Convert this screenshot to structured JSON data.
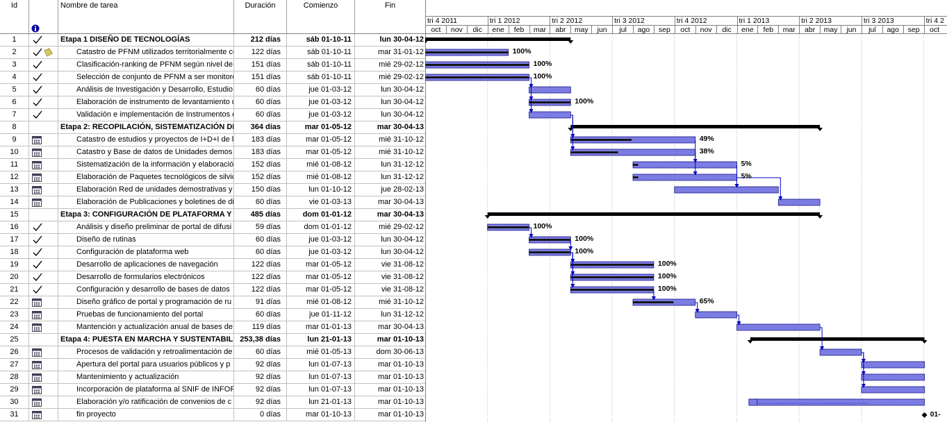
{
  "columns": {
    "id": "Id",
    "info_icon": "info-icon",
    "name": "Nombre de tarea",
    "duration": "Duración",
    "start": "Comienzo",
    "end": "Fin"
  },
  "timescale": {
    "quarters": [
      "tri 4 2011",
      "tri 1 2012",
      "tri 2 2012",
      "tri 3 2012",
      "tri 4 2012",
      "tri 1 2013",
      "tri 2 2013",
      "tri 3 2013",
      "tri 4 2"
    ],
    "months": [
      "oct",
      "nov",
      "dic",
      "ene",
      "feb",
      "mar",
      "abr",
      "may",
      "jun",
      "jul",
      "ago",
      "sep",
      "oct",
      "nov",
      "dic",
      "ene",
      "feb",
      "mar",
      "abr",
      "may",
      "jun",
      "jul",
      "ago",
      "sep",
      "oct"
    ]
  },
  "tasks": [
    {
      "id": "1",
      "ind": "check",
      "name": "Etapa 1 DISEÑO DE TECNOLOGÍAS",
      "dur": "212 días",
      "start": "sáb 01-10-11",
      "end": "lun 30-04-12",
      "summary": true
    },
    {
      "id": "2",
      "ind": "check-note",
      "name": "Catastro de PFNM utilizados territorialmente co",
      "dur": "122 días",
      "start": "sáb 01-10-11",
      "end": "mar 31-01-12",
      "pct": "100%"
    },
    {
      "id": "3",
      "ind": "check",
      "name": "Clasificación-ranking de PFNM según nivel de",
      "dur": "151 días",
      "start": "sáb 01-10-11",
      "end": "mié 29-02-12",
      "pct": "100%"
    },
    {
      "id": "4",
      "ind": "check",
      "name": "Selección de conjunto de PFNM a ser monitore",
      "dur": "151 días",
      "start": "sáb 01-10-11",
      "end": "mié 29-02-12",
      "pct": "100%"
    },
    {
      "id": "5",
      "ind": "check",
      "name": "Análisis de Investigación y Desarrollo, Estudio",
      "dur": "60 días",
      "start": "jue 01-03-12",
      "end": "lun 30-04-12"
    },
    {
      "id": "6",
      "ind": "check",
      "name": "Elaboración de instrumento de levantamiento d",
      "dur": "60 días",
      "start": "jue 01-03-12",
      "end": "lun 30-04-12",
      "pct": "100%"
    },
    {
      "id": "7",
      "ind": "check",
      "name": "Validación e implementación de Instrumentos d",
      "dur": "60 días",
      "start": "jue 01-03-12",
      "end": "lun 30-04-12"
    },
    {
      "id": "8",
      "ind": "",
      "name": "Etapa 2: RECOPILACIÓN, SISTEMATIZACIÓN DE",
      "dur": "364 días",
      "start": "mar 01-05-12",
      "end": "mar 30-04-13",
      "summary": true
    },
    {
      "id": "9",
      "ind": "cal",
      "name": "Catastro de estudios y proyectos de I+D+I de l",
      "dur": "183 días",
      "start": "mar 01-05-12",
      "end": "mié 31-10-12",
      "pct": "49%"
    },
    {
      "id": "10",
      "ind": "cal",
      "name": "Catastro y Base de datos de Unidades demos",
      "dur": "183 días",
      "start": "mar 01-05-12",
      "end": "mié 31-10-12",
      "pct": "38%"
    },
    {
      "id": "11",
      "ind": "cal",
      "name": "Sistematización de la información y elaboració",
      "dur": "152 días",
      "start": "mié 01-08-12",
      "end": "lun 31-12-12",
      "pct": "5%"
    },
    {
      "id": "12",
      "ind": "cal",
      "name": "Elaboración de Paquetes tecnológicos de silvic",
      "dur": "152 días",
      "start": "mié 01-08-12",
      "end": "lun 31-12-12",
      "pct": "5%"
    },
    {
      "id": "13",
      "ind": "cal",
      "name": "Elaboración Red de unidades demostrativas y",
      "dur": "150 días",
      "start": "lun 01-10-12",
      "end": "jue 28-02-13"
    },
    {
      "id": "14",
      "ind": "cal",
      "name": "Elaboración de Publicaciones y boletines de di",
      "dur": "60 días",
      "start": "vie 01-03-13",
      "end": "mar 30-04-13"
    },
    {
      "id": "15",
      "ind": "",
      "name": "Etapa 3: CONFIGURACIÓN DE PLATAFORMA Y E",
      "dur": "485 días",
      "start": "dom 01-01-12",
      "end": "mar 30-04-13",
      "summary": true
    },
    {
      "id": "16",
      "ind": "check",
      "name": "Análisis y diseño preliminar de portal de difusi",
      "dur": "59 días",
      "start": "dom 01-01-12",
      "end": "mié 29-02-12",
      "pct": "100%"
    },
    {
      "id": "17",
      "ind": "check",
      "name": "Diseño de rutinas",
      "dur": "60 días",
      "start": "jue 01-03-12",
      "end": "lun 30-04-12",
      "pct": "100%"
    },
    {
      "id": "18",
      "ind": "check",
      "name": "Configuración de plataforma web",
      "dur": "60 días",
      "start": "jue 01-03-12",
      "end": "lun 30-04-12",
      "pct": "100%"
    },
    {
      "id": "19",
      "ind": "check",
      "name": "Desarrollo de aplicaciones de navegación",
      "dur": "122 días",
      "start": "mar 01-05-12",
      "end": "vie 31-08-12",
      "pct": "100%"
    },
    {
      "id": "20",
      "ind": "check",
      "name": "Desarrollo de formularios electrónicos",
      "dur": "122 días",
      "start": "mar 01-05-12",
      "end": "vie 31-08-12",
      "pct": "100%"
    },
    {
      "id": "21",
      "ind": "check",
      "name": "Configuración y desarrollo de bases de datos",
      "dur": "122 días",
      "start": "mar 01-05-12",
      "end": "vie 31-08-12",
      "pct": "100%"
    },
    {
      "id": "22",
      "ind": "cal",
      "name": "Diseño gráfico de portal y programación de ru",
      "dur": "91 días",
      "start": "mié 01-08-12",
      "end": "mié 31-10-12",
      "pct": "65%"
    },
    {
      "id": "23",
      "ind": "cal",
      "name": "Pruebas de funcionamiento del portal",
      "dur": "60 días",
      "start": "jue 01-11-12",
      "end": "lun 31-12-12"
    },
    {
      "id": "24",
      "ind": "cal",
      "name": "Mantención y actualización anual de bases de",
      "dur": "119 días",
      "start": "mar 01-01-13",
      "end": "mar 30-04-13"
    },
    {
      "id": "25",
      "ind": "",
      "name": "Etapa 4: PUESTA EN MARCHA Y SUSTENTABILI",
      "dur": "253,38 días",
      "start": "lun 21-01-13",
      "end": "mar 01-10-13",
      "summary": true
    },
    {
      "id": "26",
      "ind": "cal",
      "name": "Procesos de validación y retroalimentación de",
      "dur": "60 días",
      "start": "mié 01-05-13",
      "end": "dom 30-06-13"
    },
    {
      "id": "27",
      "ind": "cal",
      "name": "Apertura del portal para usuarios públicos y p",
      "dur": "92 días",
      "start": "lun 01-07-13",
      "end": "mar 01-10-13"
    },
    {
      "id": "28",
      "ind": "cal",
      "name": "Mantenimiento y actualización",
      "dur": "92 días",
      "start": "lun 01-07-13",
      "end": "mar 01-10-13"
    },
    {
      "id": "29",
      "ind": "cal",
      "name": "Incorporación de plataforma al SNIF de INFOR",
      "dur": "92 días",
      "start": "lun 01-07-13",
      "end": "mar 01-10-13"
    },
    {
      "id": "30",
      "ind": "cal",
      "name": "Elaboración y/o ratificación de convenios de c",
      "dur": "92 días",
      "start": "lun 21-01-13",
      "end": "mar 01-10-13"
    },
    {
      "id": "31",
      "ind": "cal",
      "name": "fin proyecto",
      "dur": "0 días",
      "start": "mar 01-10-13",
      "end": "mar 01-10-13",
      "milestone_label": "01-"
    }
  ],
  "colors": {
    "bar": "#6b6bdc",
    "bar_border": "#1a1a8c",
    "progress": "#000000",
    "link": "#0000c0",
    "summary": "#000000"
  }
}
